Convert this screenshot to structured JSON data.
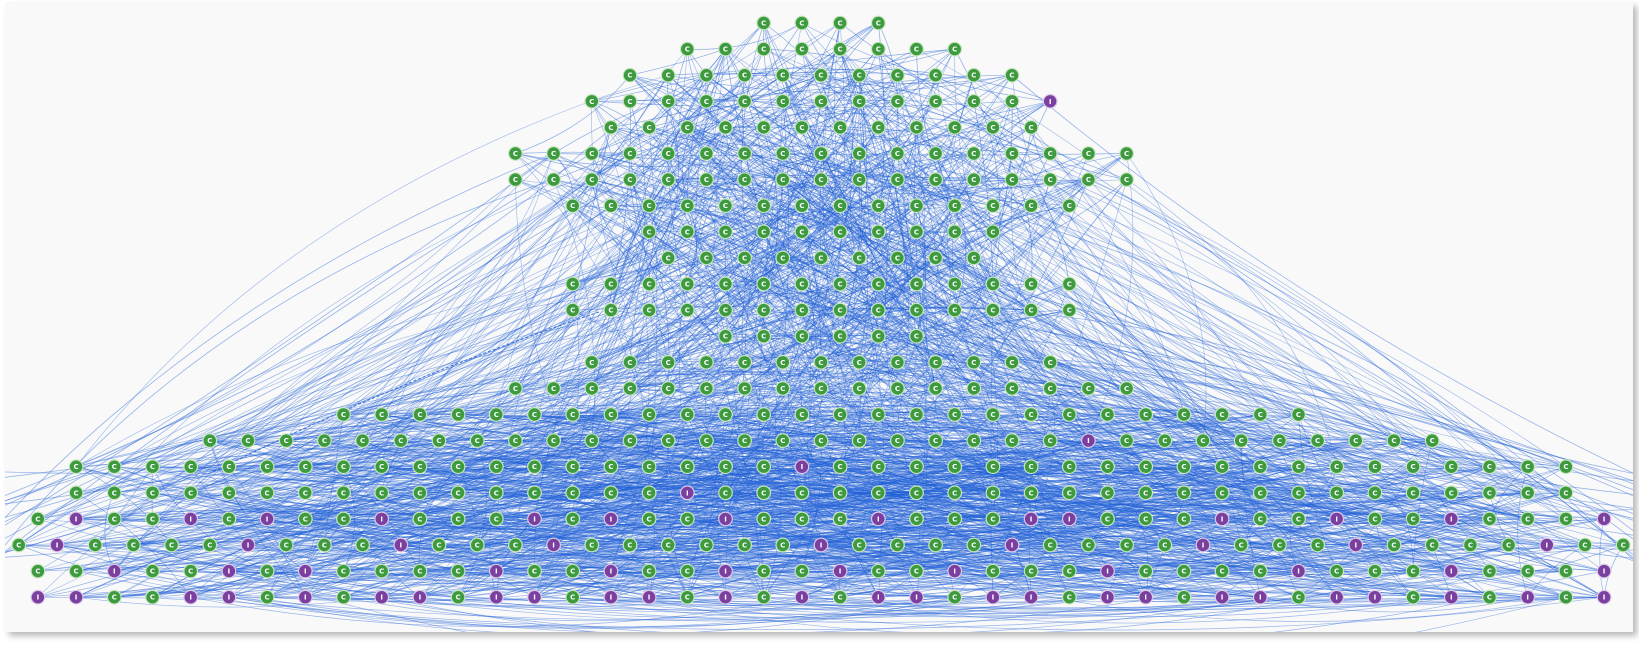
{
  "diagram": {
    "kind": "class-dependency-graph",
    "node_types": {
      "class": {
        "letter": "C",
        "fill": "#3e9a3e",
        "ring": "#c8e6c0"
      },
      "interface": {
        "letter": "I",
        "fill": "#7b3fa0",
        "ring": "#dccbe8"
      }
    },
    "edge_color": "#1f5fd6",
    "background": "#f9f9f9",
    "rows": [
      {
        "classes": 4,
        "interfaces": 0
      },
      {
        "classes": 8,
        "interfaces": 0
      },
      {
        "classes": 11,
        "interfaces": 0
      },
      {
        "classes": 12,
        "interfaces": 1
      },
      {
        "classes": 12,
        "interfaces": 0
      },
      {
        "classes": 17,
        "interfaces": 0
      },
      {
        "classes": 17,
        "interfaces": 0
      },
      {
        "classes": 14,
        "interfaces": 0
      },
      {
        "classes": 10,
        "interfaces": 0
      },
      {
        "classes": 9,
        "interfaces": 0
      },
      {
        "classes": 14,
        "interfaces": 0
      },
      {
        "classes": 14,
        "interfaces": 0
      },
      {
        "classes": 6,
        "interfaces": 0
      },
      {
        "classes": 13,
        "interfaces": 0
      },
      {
        "classes": 17,
        "interfaces": 0
      },
      {
        "classes": 26,
        "interfaces": 0
      },
      {
        "classes": 32,
        "interfaces": 1
      },
      {
        "classes": 39,
        "interfaces": 1
      },
      {
        "classes": 39,
        "interfaces": 1
      },
      {
        "classes": 28,
        "interfaces": 14
      },
      {
        "classes": 34,
        "interfaces": 9
      },
      {
        "classes": 30,
        "interfaces": 12
      },
      {
        "classes": 16,
        "interfaces": 26
      }
    ],
    "estimated_edges": 2200
  }
}
